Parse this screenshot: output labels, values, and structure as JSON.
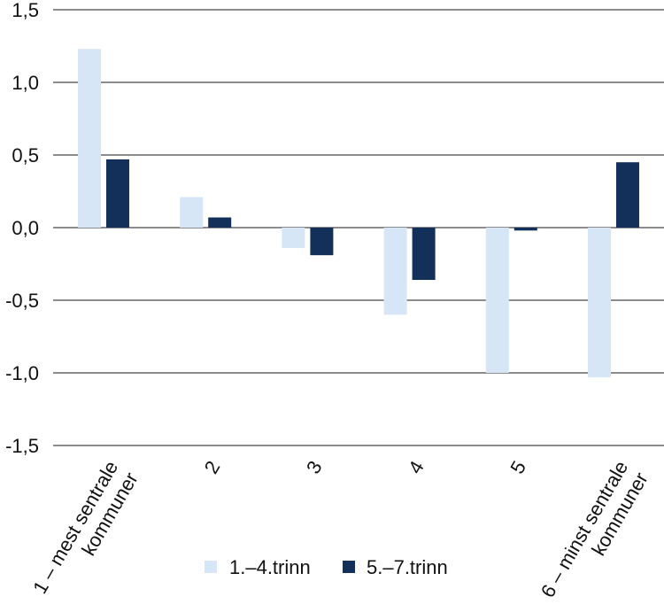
{
  "chart_data": {
    "type": "bar",
    "title": "",
    "xlabel": "",
    "ylabel": "",
    "ylim": [
      -1.5,
      1.5
    ],
    "yticks": [
      "-1,5",
      "-1,0",
      "-0,5",
      "0,0",
      "0,5",
      "1,0",
      "1,5"
    ],
    "ytick_values": [
      -1.5,
      -1.0,
      -0.5,
      0.0,
      0.5,
      1.0,
      1.5
    ],
    "grid": true,
    "categories": [
      [
        "1 – mest sentrale",
        "kommuner"
      ],
      [
        "2"
      ],
      [
        "3"
      ],
      [
        "4"
      ],
      [
        "5"
      ],
      [
        "6 – minst sentrale",
        "kommuner"
      ]
    ],
    "series": [
      {
        "name": "1.–4.trinn",
        "color": "#d6e6f7",
        "values": [
          1.23,
          0.21,
          -0.14,
          -0.6,
          -1.0,
          -1.03
        ]
      },
      {
        "name": "5.–7.trinn",
        "color": "#12305a",
        "values": [
          0.47,
          0.07,
          -0.19,
          -0.36,
          -0.02,
          0.45
        ]
      }
    ],
    "legend_position": "bottom"
  }
}
